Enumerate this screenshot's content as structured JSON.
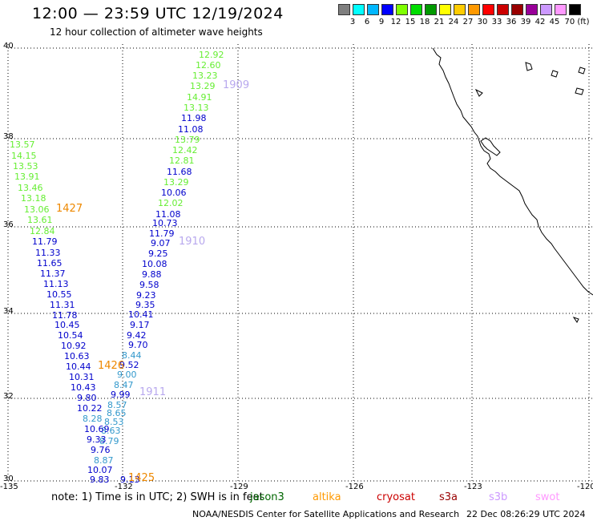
{
  "header": {
    "title": "12:00 — 23:59 UTC 12/19/2024",
    "subtitle": "12 hour collection of altimeter wave heights"
  },
  "color_scale": {
    "colors": [
      "#7f7f7f",
      "#00ffff",
      "#00b7ff",
      "#0000ff",
      "#7fff00",
      "#00dd00",
      "#009900",
      "#ffff00",
      "#ffcc00",
      "#ff9900",
      "#ff0000",
      "#cc0000",
      "#990000",
      "#990099",
      "#cc99ff",
      "#ff99ff",
      "#000000"
    ],
    "labels": [
      "3",
      "6",
      "9",
      "12",
      "15",
      "18",
      "21",
      "24",
      "27",
      "30",
      "33",
      "36",
      "39",
      "42",
      "45",
      "70 (ft)"
    ]
  },
  "axes": {
    "lat_labels": [
      "40",
      "38",
      "36",
      "34",
      "32",
      "30"
    ],
    "lon_labels": [
      "-135",
      "-132",
      "-129",
      "-126",
      "-123",
      "-120"
    ]
  },
  "colors": {
    "light_green": "#66ee33",
    "dark_blue": "#0000cc",
    "cyan": "#3399cc",
    "orange": "#ee8800",
    "lavender": "#b8a8ee"
  },
  "observations": [
    {
      "text": "12.92",
      "c": "light_green"
    },
    {
      "text": "12.60",
      "c": "light_green"
    },
    {
      "text": "13.23",
      "c": "light_green"
    },
    {
      "text": "13.29",
      "c": "light_green"
    },
    {
      "text": "14.91",
      "c": "light_green"
    },
    {
      "text": "13.13",
      "c": "light_green"
    },
    {
      "text": "11.98",
      "c": "dark_blue"
    },
    {
      "text": "11.08",
      "c": "dark_blue"
    },
    {
      "text": "13.79",
      "c": "light_green"
    },
    {
      "text": "12.42",
      "c": "light_green"
    },
    {
      "text": "12.81",
      "c": "light_green"
    },
    {
      "text": "11.68",
      "c": "dark_blue"
    },
    {
      "text": "13.29",
      "c": "light_green"
    },
    {
      "text": "10.06",
      "c": "dark_blue"
    },
    {
      "text": "12.02",
      "c": "light_green"
    },
    {
      "text": "11.08",
      "c": "dark_blue"
    },
    {
      "text": "10.73",
      "c": "dark_blue"
    },
    {
      "text": "11.79",
      "c": "dark_blue"
    },
    {
      "text": "9.07",
      "c": "dark_blue"
    },
    {
      "text": "9.25",
      "c": "dark_blue"
    },
    {
      "text": "10.08",
      "c": "dark_blue"
    },
    {
      "text": "9.88",
      "c": "dark_blue"
    },
    {
      "text": "9.58",
      "c": "dark_blue"
    },
    {
      "text": "9.23",
      "c": "dark_blue"
    },
    {
      "text": "9.35",
      "c": "dark_blue"
    },
    {
      "text": "10.41",
      "c": "dark_blue"
    },
    {
      "text": "9.17",
      "c": "dark_blue"
    },
    {
      "text": "9.42",
      "c": "dark_blue"
    },
    {
      "text": "9.70",
      "c": "dark_blue"
    },
    {
      "text": "8.44",
      "c": "cyan"
    },
    {
      "text": "9.52",
      "c": "dark_blue"
    },
    {
      "text": "9.00",
      "c": "cyan"
    },
    {
      "text": "8.47",
      "c": "cyan"
    },
    {
      "text": "9.99",
      "c": "dark_blue"
    },
    {
      "text": "8.57",
      "c": "cyan"
    },
    {
      "text": "8.65",
      "c": "cyan"
    },
    {
      "text": "8.53",
      "c": "cyan"
    },
    {
      "text": "8.63",
      "c": "cyan"
    },
    {
      "text": "8.79",
      "c": "cyan"
    },
    {
      "text": "13.57",
      "c": "light_green"
    },
    {
      "text": "14.15",
      "c": "light_green"
    },
    {
      "text": "13.53",
      "c": "light_green"
    },
    {
      "text": "13.91",
      "c": "light_green"
    },
    {
      "text": "13.46",
      "c": "light_green"
    },
    {
      "text": "13.18",
      "c": "light_green"
    },
    {
      "text": "13.06",
      "c": "light_green"
    },
    {
      "text": "13.61",
      "c": "light_green"
    },
    {
      "text": "12.84",
      "c": "light_green"
    },
    {
      "text": "11.79",
      "c": "dark_blue"
    },
    {
      "text": "11.33",
      "c": "dark_blue"
    },
    {
      "text": "11.65",
      "c": "dark_blue"
    },
    {
      "text": "11.37",
      "c": "dark_blue"
    },
    {
      "text": "11.13",
      "c": "dark_blue"
    },
    {
      "text": "10.55",
      "c": "dark_blue"
    },
    {
      "text": "11.31",
      "c": "dark_blue"
    },
    {
      "text": "11.78",
      "c": "dark_blue"
    },
    {
      "text": "10.45",
      "c": "dark_blue"
    },
    {
      "text": "10.54",
      "c": "dark_blue"
    },
    {
      "text": "10.92",
      "c": "dark_blue"
    },
    {
      "text": "10.63",
      "c": "dark_blue"
    },
    {
      "text": "10.44",
      "c": "dark_blue"
    },
    {
      "text": "10.31",
      "c": "dark_blue"
    },
    {
      "text": "10.43",
      "c": "dark_blue"
    },
    {
      "text": "9.80",
      "c": "dark_blue"
    },
    {
      "text": "10.22",
      "c": "dark_blue"
    },
    {
      "text": "8.28",
      "c": "cyan"
    },
    {
      "text": "10.69",
      "c": "dark_blue"
    },
    {
      "text": "9.33",
      "c": "dark_blue"
    },
    {
      "text": "9.76",
      "c": "dark_blue"
    },
    {
      "text": "8.87",
      "c": "cyan"
    },
    {
      "text": "10.07",
      "c": "dark_blue"
    },
    {
      "text": "9.83",
      "c": "dark_blue"
    },
    {
      "text": "9.13",
      "c": "dark_blue"
    }
  ],
  "passes": [
    "1909",
    "1910",
    "1911",
    "1427",
    "1426",
    "1425"
  ],
  "note": "note: 1) Time is in UTC; 2) SWH is in feet",
  "satellites": [
    {
      "name": "jason3",
      "color": "#006600"
    },
    {
      "name": "altika",
      "color": "#ff9900"
    },
    {
      "name": "cryosat",
      "color": "#cc0000"
    },
    {
      "name": "s3a",
      "color": "#990000"
    },
    {
      "name": "s3b",
      "color": "#cc99ff"
    },
    {
      "name": "swot",
      "color": "#ff99ff"
    }
  ],
  "footer": {
    "org": "NOAA/NESDIS Center for Satellite Applications and Research",
    "timestamp": "22 Dec 08:26:29 UTC 2024"
  }
}
